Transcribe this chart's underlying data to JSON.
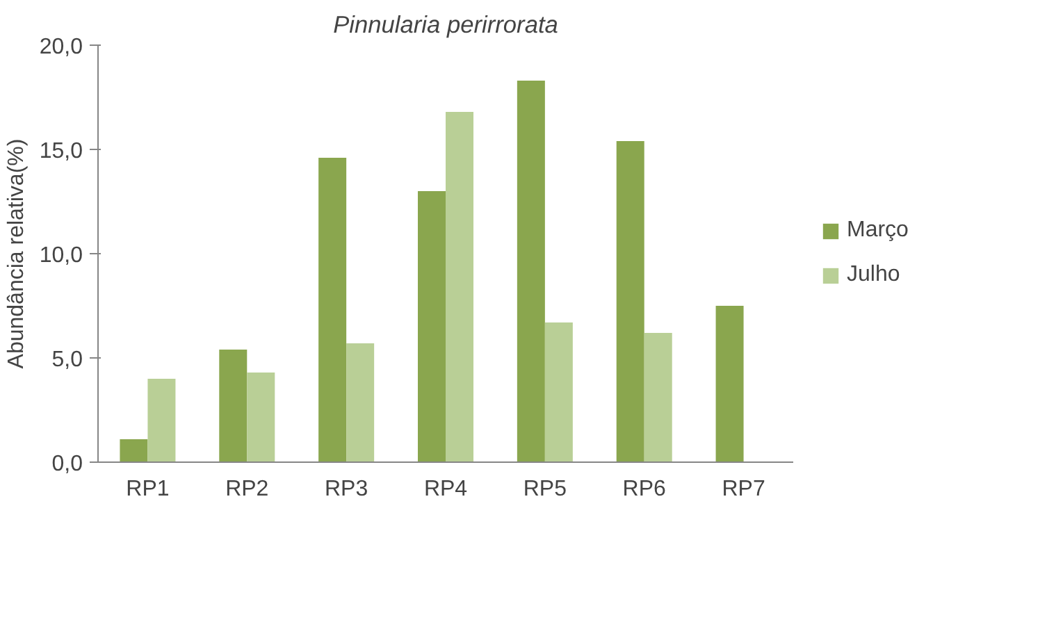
{
  "chart_data": {
    "type": "bar",
    "title": "Pinnularia perirrorata",
    "ylabel": "Abundância relativa(%)",
    "categories": [
      "RP1",
      "RP2",
      "RP3",
      "RP4",
      "RP5",
      "RP6",
      "RP7"
    ],
    "series": [
      {
        "name": "Março",
        "color": "#8aa64e",
        "values": [
          1.1,
          5.4,
          14.6,
          13.0,
          18.3,
          15.4,
          7.5
        ]
      },
      {
        "name": "Julho",
        "color": "#b9cf96",
        "values": [
          4.0,
          4.3,
          5.7,
          16.8,
          6.7,
          6.2,
          null
        ]
      }
    ],
    "ylim": [
      0,
      20
    ],
    "yticks": [
      {
        "value": 0,
        "label": "0,0"
      },
      {
        "value": 5,
        "label": "5,0"
      },
      {
        "value": 10,
        "label": "10,0"
      },
      {
        "value": 15,
        "label": "15,0"
      },
      {
        "value": 20,
        "label": "20,0"
      }
    ],
    "grid": false,
    "legend": "right"
  }
}
